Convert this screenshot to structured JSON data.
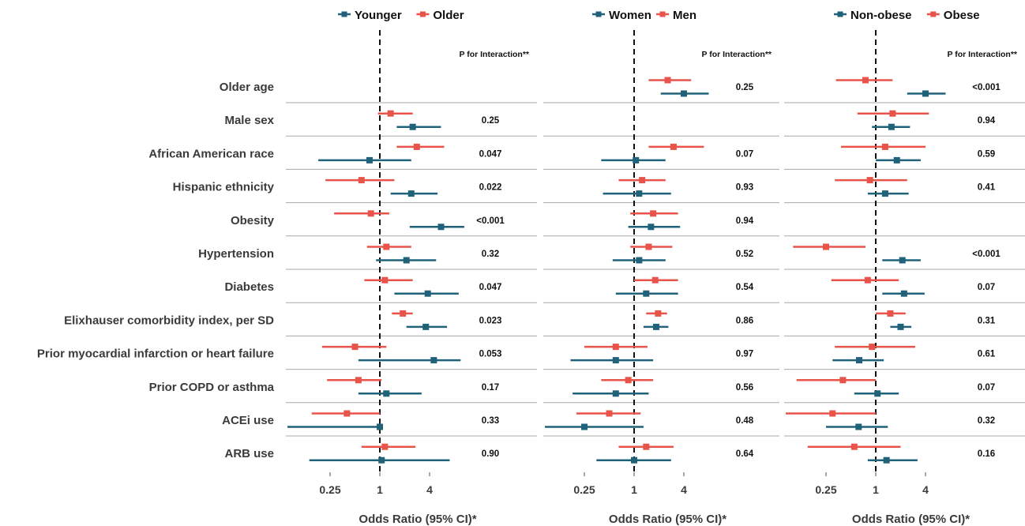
{
  "chart_data": [
    {
      "type": "forest",
      "subgroup": "age",
      "legend": [
        {
          "name": "Younger",
          "color": "#20627a"
        },
        {
          "name": "Older",
          "color": "#e8534a"
        }
      ],
      "p_header": "P for Interaction**",
      "xlabel": "Odds Ratio (95% CI)*",
      "x_scale": "log2",
      "xlim": [
        0.0625,
        16
      ],
      "xticks": [
        "0.25",
        "1",
        "4"
      ],
      "reference_line": 1,
      "rows": [
        {
          "label": "Older age",
          "p": "",
          "series": []
        },
        {
          "label": "Male sex",
          "p": "0.25",
          "series": [
            {
              "or": 1.35,
              "lo": 0.95,
              "hi": 2.5
            },
            {
              "or": 2.5,
              "lo": 1.6,
              "hi": 5.5
            }
          ]
        },
        {
          "label": "African American race",
          "p": "0.047",
          "series": [
            {
              "or": 2.8,
              "lo": 1.6,
              "hi": 6.0
            },
            {
              "or": 0.75,
              "lo": 0.18,
              "hi": 2.4
            }
          ]
        },
        {
          "label": "Hispanic ethnicity",
          "p": "0.022",
          "series": [
            {
              "or": 0.6,
              "lo": 0.22,
              "hi": 1.5
            },
            {
              "or": 2.4,
              "lo": 1.35,
              "hi": 5.0
            }
          ]
        },
        {
          "label": "Obesity",
          "p": "<0.001",
          "series": [
            {
              "or": 0.78,
              "lo": 0.28,
              "hi": 1.3
            },
            {
              "or": 5.5,
              "lo": 2.3,
              "hi": 10.5
            }
          ]
        },
        {
          "label": "Hypertension",
          "p": "0.32",
          "series": [
            {
              "or": 1.2,
              "lo": 0.7,
              "hi": 2.4
            },
            {
              "or": 2.1,
              "lo": 0.9,
              "hi": 4.8
            }
          ]
        },
        {
          "label": "Diabetes",
          "p": "0.047",
          "series": [
            {
              "or": 1.15,
              "lo": 0.65,
              "hi": 2.5
            },
            {
              "or": 3.8,
              "lo": 1.5,
              "hi": 9.0
            }
          ]
        },
        {
          "label": "Elixhauser comorbidity index, per SD",
          "p": "0.023",
          "series": [
            {
              "or": 1.9,
              "lo": 1.4,
              "hi": 2.5
            },
            {
              "or": 3.6,
              "lo": 2.1,
              "hi": 6.5
            }
          ]
        },
        {
          "label": "Prior myocardial infarction or heart failure",
          "p": "0.053",
          "series": [
            {
              "or": 0.5,
              "lo": 0.2,
              "hi": 1.2
            },
            {
              "or": 4.5,
              "lo": 0.55,
              "hi": 9.5
            }
          ]
        },
        {
          "label": "Prior COPD or asthma",
          "p": "0.17",
          "series": [
            {
              "or": 0.55,
              "lo": 0.23,
              "hi": 1.05
            },
            {
              "or": 1.2,
              "lo": 0.55,
              "hi": 3.2
            }
          ]
        },
        {
          "label": "ACEi use",
          "p": "0.33",
          "series": [
            {
              "or": 0.4,
              "lo": 0.15,
              "hi": 1.0
            },
            {
              "or": 1.0,
              "lo": 0.0625,
              "hi": 1.0
            }
          ]
        },
        {
          "label": "ARB use",
          "p": "0.90",
          "series": [
            {
              "or": 1.15,
              "lo": 0.6,
              "hi": 2.7
            },
            {
              "or": 1.05,
              "lo": 0.14,
              "hi": 7.0
            }
          ]
        }
      ]
    },
    {
      "type": "forest",
      "subgroup": "sex",
      "legend": [
        {
          "name": "Women",
          "color": "#20627a"
        },
        {
          "name": "Men",
          "color": "#e8534a"
        }
      ],
      "p_header": "P for Interaction**",
      "xlabel": "Odds Ratio (95% CI)*",
      "x_scale": "log2",
      "xlim": [
        0.0625,
        16
      ],
      "xticks": [
        "0.25",
        "1",
        "4"
      ],
      "reference_line": 1,
      "rows": [
        {
          "label": "Older age",
          "p": "0.25",
          "series": [
            {
              "or": 2.55,
              "lo": 1.5,
              "hi": 4.9
            },
            {
              "or": 4.0,
              "lo": 2.1,
              "hi": 8.0
            }
          ]
        },
        {
          "label": "Male sex",
          "p": "",
          "series": []
        },
        {
          "label": "African American race",
          "p": "0.07",
          "series": [
            {
              "or": 3.0,
              "lo": 1.5,
              "hi": 7.0
            },
            {
              "or": 1.05,
              "lo": 0.4,
              "hi": 2.4
            }
          ]
        },
        {
          "label": "Hispanic ethnicity",
          "p": "0.93",
          "series": [
            {
              "or": 1.25,
              "lo": 0.65,
              "hi": 2.4
            },
            {
              "or": 1.15,
              "lo": 0.42,
              "hi": 2.8
            }
          ]
        },
        {
          "label": "Obesity",
          "p": "0.94",
          "series": [
            {
              "or": 1.7,
              "lo": 0.9,
              "hi": 3.4
            },
            {
              "or": 1.6,
              "lo": 0.85,
              "hi": 3.6
            }
          ]
        },
        {
          "label": "Hypertension",
          "p": "0.52",
          "series": [
            {
              "or": 1.5,
              "lo": 0.9,
              "hi": 2.9
            },
            {
              "or": 1.15,
              "lo": 0.55,
              "hi": 2.4
            }
          ]
        },
        {
          "label": "Diabetes",
          "p": "0.54",
          "series": [
            {
              "or": 1.8,
              "lo": 1.0,
              "hi": 3.4
            },
            {
              "or": 1.4,
              "lo": 0.6,
              "hi": 3.4
            }
          ]
        },
        {
          "label": "Elixhauser comorbidity index, per SD",
          "p": "0.86",
          "series": [
            {
              "or": 1.95,
              "lo": 1.4,
              "hi": 2.5
            },
            {
              "or": 1.85,
              "lo": 1.3,
              "hi": 2.6
            }
          ]
        },
        {
          "label": "Prior myocardial infarction or heart failure",
          "p": "0.97",
          "series": [
            {
              "or": 0.6,
              "lo": 0.25,
              "hi": 1.45
            },
            {
              "or": 0.6,
              "lo": 0.17,
              "hi": 1.7
            }
          ]
        },
        {
          "label": "Prior COPD or asthma",
          "p": "0.56",
          "series": [
            {
              "or": 0.85,
              "lo": 0.4,
              "hi": 1.7
            },
            {
              "or": 0.6,
              "lo": 0.18,
              "hi": 1.5
            }
          ]
        },
        {
          "label": "ACEi use",
          "p": "0.48",
          "series": [
            {
              "or": 0.5,
              "lo": 0.2,
              "hi": 1.2
            },
            {
              "or": 0.25,
              "lo": 0.065,
              "hi": 1.3
            }
          ]
        },
        {
          "label": "ARB use",
          "p": "0.64",
          "series": [
            {
              "or": 1.4,
              "lo": 0.65,
              "hi": 3.0
            },
            {
              "or": 1.0,
              "lo": 0.35,
              "hi": 2.8
            }
          ]
        }
      ]
    },
    {
      "type": "forest",
      "subgroup": "obesity",
      "legend": [
        {
          "name": "Non-obese",
          "color": "#20627a"
        },
        {
          "name": "Obese",
          "color": "#e8534a"
        }
      ],
      "p_header": "P for Interaction**",
      "xlabel": "Odds Ratio (95% CI)*",
      "x_scale": "log2",
      "xlim": [
        0.0625,
        16
      ],
      "xticks": [
        "0.25",
        "1",
        "4"
      ],
      "reference_line": 1,
      "rows": [
        {
          "label": "Older age",
          "p": "<0.001",
          "series": [
            {
              "or": 0.75,
              "lo": 0.33,
              "hi": 1.6
            },
            {
              "or": 4.0,
              "lo": 2.4,
              "hi": 7.0
            }
          ]
        },
        {
          "label": "Male sex",
          "p": "0.94",
          "series": [
            {
              "or": 1.6,
              "lo": 0.6,
              "hi": 4.4
            },
            {
              "or": 1.55,
              "lo": 0.9,
              "hi": 2.6
            }
          ]
        },
        {
          "label": "African American race",
          "p": "0.59",
          "series": [
            {
              "or": 1.3,
              "lo": 0.38,
              "hi": 4.0
            },
            {
              "or": 1.8,
              "lo": 1.0,
              "hi": 3.5
            }
          ]
        },
        {
          "label": "Hispanic ethnicity",
          "p": "0.41",
          "series": [
            {
              "or": 0.85,
              "lo": 0.32,
              "hi": 2.4
            },
            {
              "or": 1.3,
              "lo": 0.8,
              "hi": 2.5
            }
          ]
        },
        {
          "label": "Obesity",
          "p": "",
          "series": []
        },
        {
          "label": "Hypertension",
          "p": "<0.001",
          "series": [
            {
              "or": 0.25,
              "lo": 0.1,
              "hi": 0.75
            },
            {
              "or": 2.1,
              "lo": 1.2,
              "hi": 3.5
            }
          ]
        },
        {
          "label": "Diabetes",
          "p": "0.07",
          "series": [
            {
              "or": 0.8,
              "lo": 0.29,
              "hi": 1.9
            },
            {
              "or": 2.2,
              "lo": 1.2,
              "hi": 3.9
            }
          ]
        },
        {
          "label": "Elixhauser comorbidity index, per SD",
          "p": "0.31",
          "series": [
            {
              "or": 1.5,
              "lo": 1.0,
              "hi": 2.3
            },
            {
              "or": 2.0,
              "lo": 1.5,
              "hi": 2.7
            }
          ]
        },
        {
          "label": "Prior myocardial infarction or heart failure",
          "p": "0.61",
          "series": [
            {
              "or": 0.9,
              "lo": 0.32,
              "hi": 3.0
            },
            {
              "or": 0.63,
              "lo": 0.3,
              "hi": 1.25
            }
          ]
        },
        {
          "label": "Prior COPD or asthma",
          "p": "0.07",
          "series": [
            {
              "or": 0.4,
              "lo": 0.11,
              "hi": 1.0
            },
            {
              "or": 1.05,
              "lo": 0.55,
              "hi": 1.9
            }
          ]
        },
        {
          "label": "ACEi use",
          "p": "0.32",
          "series": [
            {
              "or": 0.3,
              "lo": 0.065,
              "hi": 1.0
            },
            {
              "or": 0.62,
              "lo": 0.25,
              "hi": 1.4
            }
          ]
        },
        {
          "label": "ARB use",
          "p": "0.16",
          "series": [
            {
              "or": 0.55,
              "lo": 0.15,
              "hi": 2.0
            },
            {
              "or": 1.35,
              "lo": 0.8,
              "hi": 3.2
            }
          ]
        }
      ]
    }
  ]
}
